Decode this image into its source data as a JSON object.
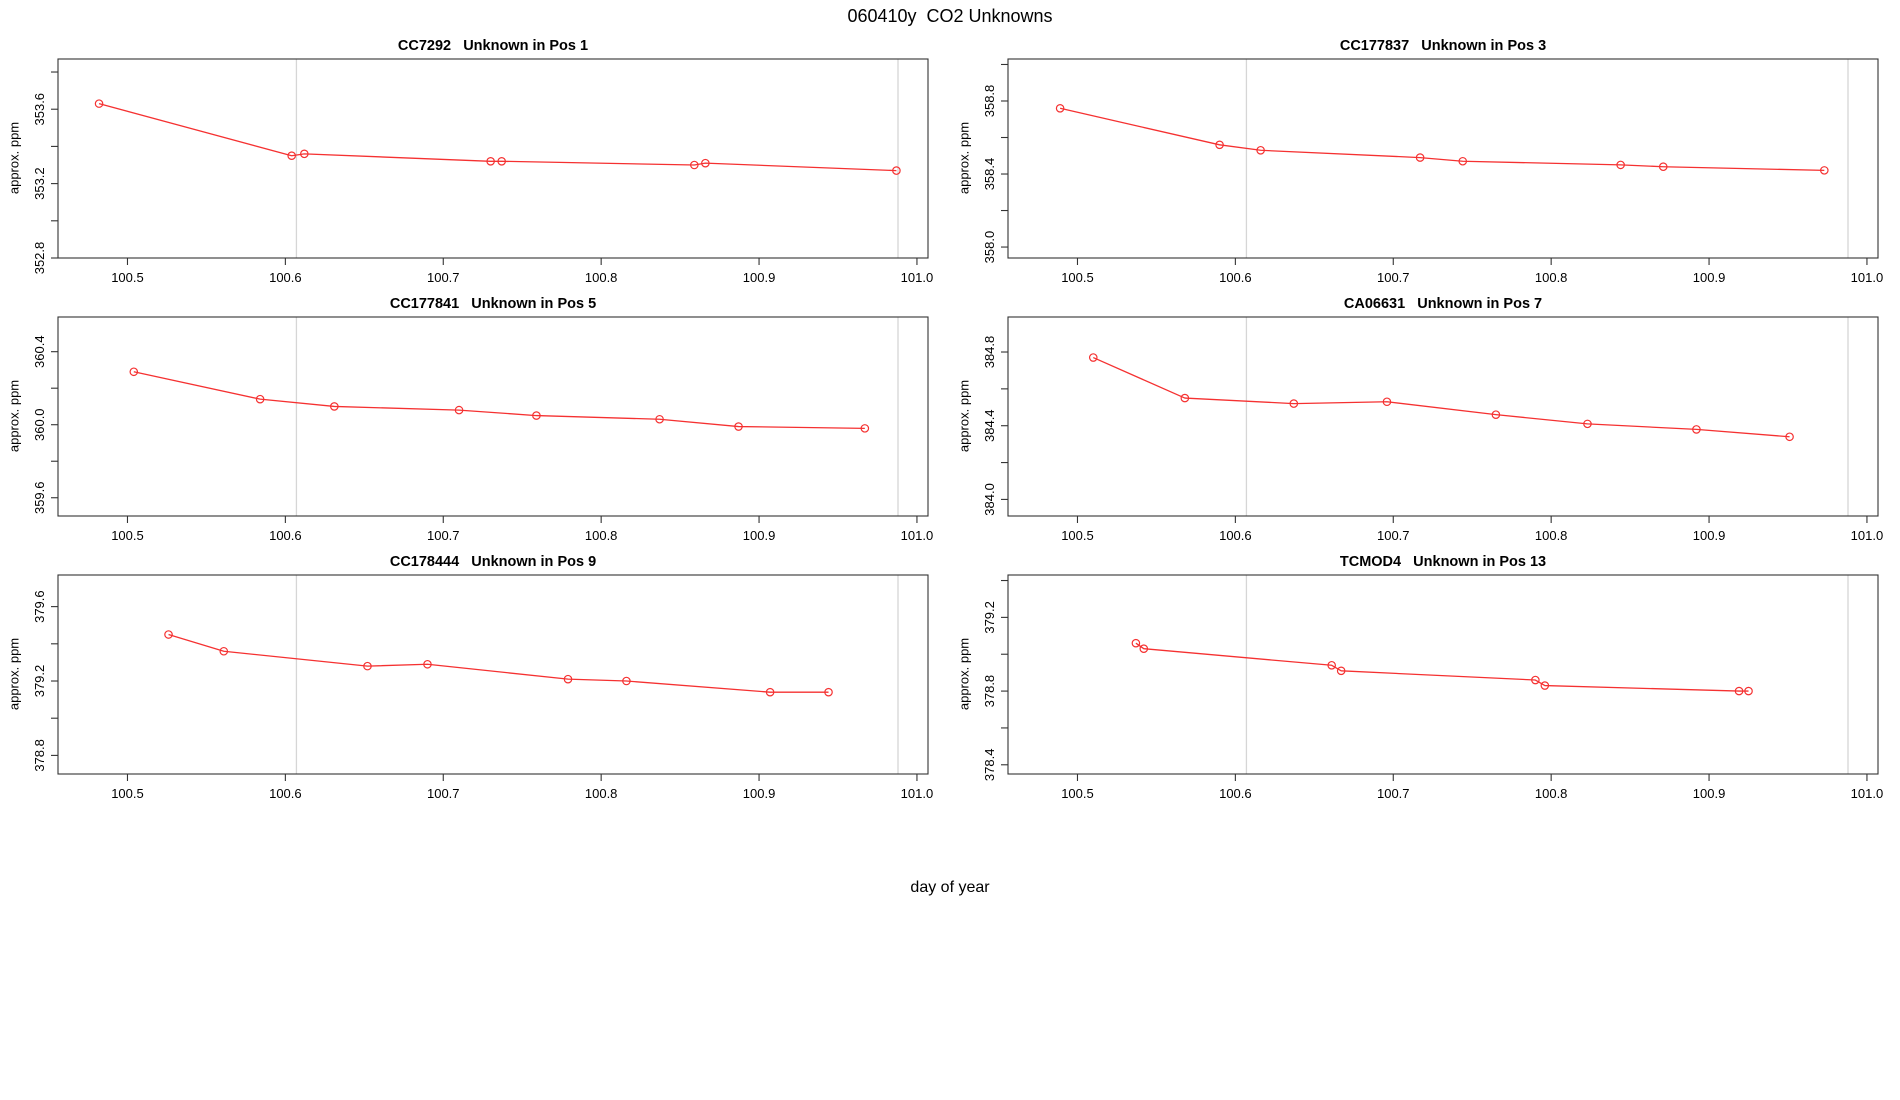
{
  "figure": {
    "title": "060410y  CO2 Unknowns",
    "xlabel": "day of year",
    "background": "#ffffff"
  },
  "colors": {
    "series": "#f53131",
    "refline": "#d6d6d6",
    "axis": "#333333",
    "text": "#000000"
  },
  "chart_data": [
    {
      "type": "line",
      "title": "CC7292   Unknown in Pos 1",
      "ylabel": "approx. ppm",
      "x": [
        100.482,
        100.604,
        100.612,
        100.73,
        100.737,
        100.859,
        100.866,
        100.987
      ],
      "y": [
        353.63,
        353.35,
        353.36,
        353.32,
        353.32,
        353.3,
        353.31,
        353.27
      ],
      "xlim": [
        100.456,
        101.007
      ],
      "ylim": [
        352.8,
        353.87
      ],
      "xticks": [
        100.5,
        100.6,
        100.7,
        100.8,
        100.9,
        101.0
      ],
      "xtick_labels": [
        "100.5",
        "100.6",
        "100.7",
        "100.8",
        "100.9",
        "101.0"
      ],
      "yticks": [
        352.8,
        353.0,
        353.2,
        353.4,
        353.6,
        353.8
      ],
      "ytick_labels": [
        "352.8",
        "",
        "353.2",
        "",
        "353.6",
        ""
      ],
      "vlines": [
        100.607,
        100.988
      ],
      "grid": false,
      "legend": null
    },
    {
      "type": "line",
      "title": "CC177837   Unknown in Pos 3",
      "ylabel": "approx. ppm",
      "x": [
        100.489,
        100.59,
        100.616,
        100.717,
        100.744,
        100.844,
        100.871,
        100.973
      ],
      "y": [
        358.76,
        358.56,
        358.53,
        358.49,
        358.47,
        358.45,
        358.44,
        358.42
      ],
      "xlim": [
        100.456,
        101.007
      ],
      "ylim": [
        357.94,
        359.03
      ],
      "xticks": [
        100.5,
        100.6,
        100.7,
        100.8,
        100.9,
        101.0
      ],
      "xtick_labels": [
        "100.5",
        "100.6",
        "100.7",
        "100.8",
        "100.9",
        "101.0"
      ],
      "yticks": [
        358.0,
        358.2,
        358.4,
        358.6,
        358.8,
        359.0
      ],
      "ytick_labels": [
        "358.0",
        "",
        "358.4",
        "",
        "358.8",
        ""
      ],
      "vlines": [
        100.607,
        100.988
      ],
      "grid": false,
      "legend": null
    },
    {
      "type": "line",
      "title": "CC177841   Unknown in Pos 5",
      "ylabel": "approx. ppm",
      "x": [
        100.504,
        100.584,
        100.631,
        100.71,
        100.759,
        100.837,
        100.887,
        100.967
      ],
      "y": [
        360.29,
        360.14,
        360.1,
        360.08,
        360.05,
        360.03,
        359.99,
        359.98
      ],
      "xlim": [
        100.456,
        101.007
      ],
      "ylim": [
        359.5,
        360.59
      ],
      "xticks": [
        100.5,
        100.6,
        100.7,
        100.8,
        100.9,
        101.0
      ],
      "xtick_labels": [
        "100.5",
        "100.6",
        "100.7",
        "100.8",
        "100.9",
        "101.0"
      ],
      "yticks": [
        359.6,
        359.8,
        360.0,
        360.2,
        360.4
      ],
      "ytick_labels": [
        "359.6",
        "",
        "360.0",
        "",
        "360.4"
      ],
      "vlines": [
        100.607,
        100.988
      ],
      "grid": false,
      "legend": null
    },
    {
      "type": "line",
      "title": "CA06631   Unknown in Pos 7",
      "ylabel": "approx. ppm",
      "x": [
        100.51,
        100.568,
        100.637,
        100.696,
        100.765,
        100.823,
        100.892,
        100.951
      ],
      "y": [
        384.77,
        384.55,
        384.52,
        384.53,
        384.46,
        384.41,
        384.38,
        384.34
      ],
      "xlim": [
        100.456,
        101.007
      ],
      "ylim": [
        383.91,
        384.99
      ],
      "xticks": [
        100.5,
        100.6,
        100.7,
        100.8,
        100.9,
        101.0
      ],
      "xtick_labels": [
        "100.5",
        "100.6",
        "100.7",
        "100.8",
        "100.9",
        "101.0"
      ],
      "yticks": [
        384.0,
        384.2,
        384.4,
        384.6,
        384.8
      ],
      "ytick_labels": [
        "384.0",
        "",
        "384.4",
        "",
        "384.8"
      ],
      "vlines": [
        100.607,
        100.988
      ],
      "grid": false,
      "legend": null
    },
    {
      "type": "line",
      "title": "CC178444   Unknown in Pos 9",
      "ylabel": "approx. ppm",
      "x": [
        100.526,
        100.561,
        100.652,
        100.69,
        100.779,
        100.816,
        100.907,
        100.944
      ],
      "y": [
        379.45,
        379.36,
        379.28,
        379.29,
        379.21,
        379.2,
        379.14,
        379.14
      ],
      "xlim": [
        100.456,
        101.007
      ],
      "ylim": [
        378.7,
        379.77
      ],
      "xticks": [
        100.5,
        100.6,
        100.7,
        100.8,
        100.9,
        101.0
      ],
      "xtick_labels": [
        "100.5",
        "100.6",
        "100.7",
        "100.8",
        "100.9",
        "101.0"
      ],
      "yticks": [
        378.8,
        379.0,
        379.2,
        379.4,
        379.6
      ],
      "ytick_labels": [
        "378.8",
        "",
        "379.2",
        "",
        "379.6"
      ],
      "vlines": [
        100.607,
        100.988
      ],
      "grid": false,
      "legend": null
    },
    {
      "type": "line",
      "title": "TCMOD4   Unknown in Pos 13",
      "ylabel": "approx. ppm",
      "x": [
        100.537,
        100.542,
        100.661,
        100.667,
        100.79,
        100.796,
        100.919,
        100.925
      ],
      "y": [
        379.06,
        379.03,
        378.94,
        378.91,
        378.86,
        378.83,
        378.8,
        378.8
      ],
      "xlim": [
        100.456,
        101.007
      ],
      "ylim": [
        378.35,
        379.43
      ],
      "xticks": [
        100.5,
        100.6,
        100.7,
        100.8,
        100.9,
        101.0
      ],
      "xtick_labels": [
        "100.5",
        "100.6",
        "100.7",
        "100.8",
        "100.9",
        "101.0"
      ],
      "yticks": [
        378.4,
        378.6,
        378.8,
        379.0,
        379.2,
        379.4
      ],
      "ytick_labels": [
        "378.4",
        "",
        "378.8",
        "",
        "379.2",
        ""
      ],
      "vlines": [
        100.607,
        100.988
      ],
      "grid": false,
      "legend": null
    }
  ]
}
